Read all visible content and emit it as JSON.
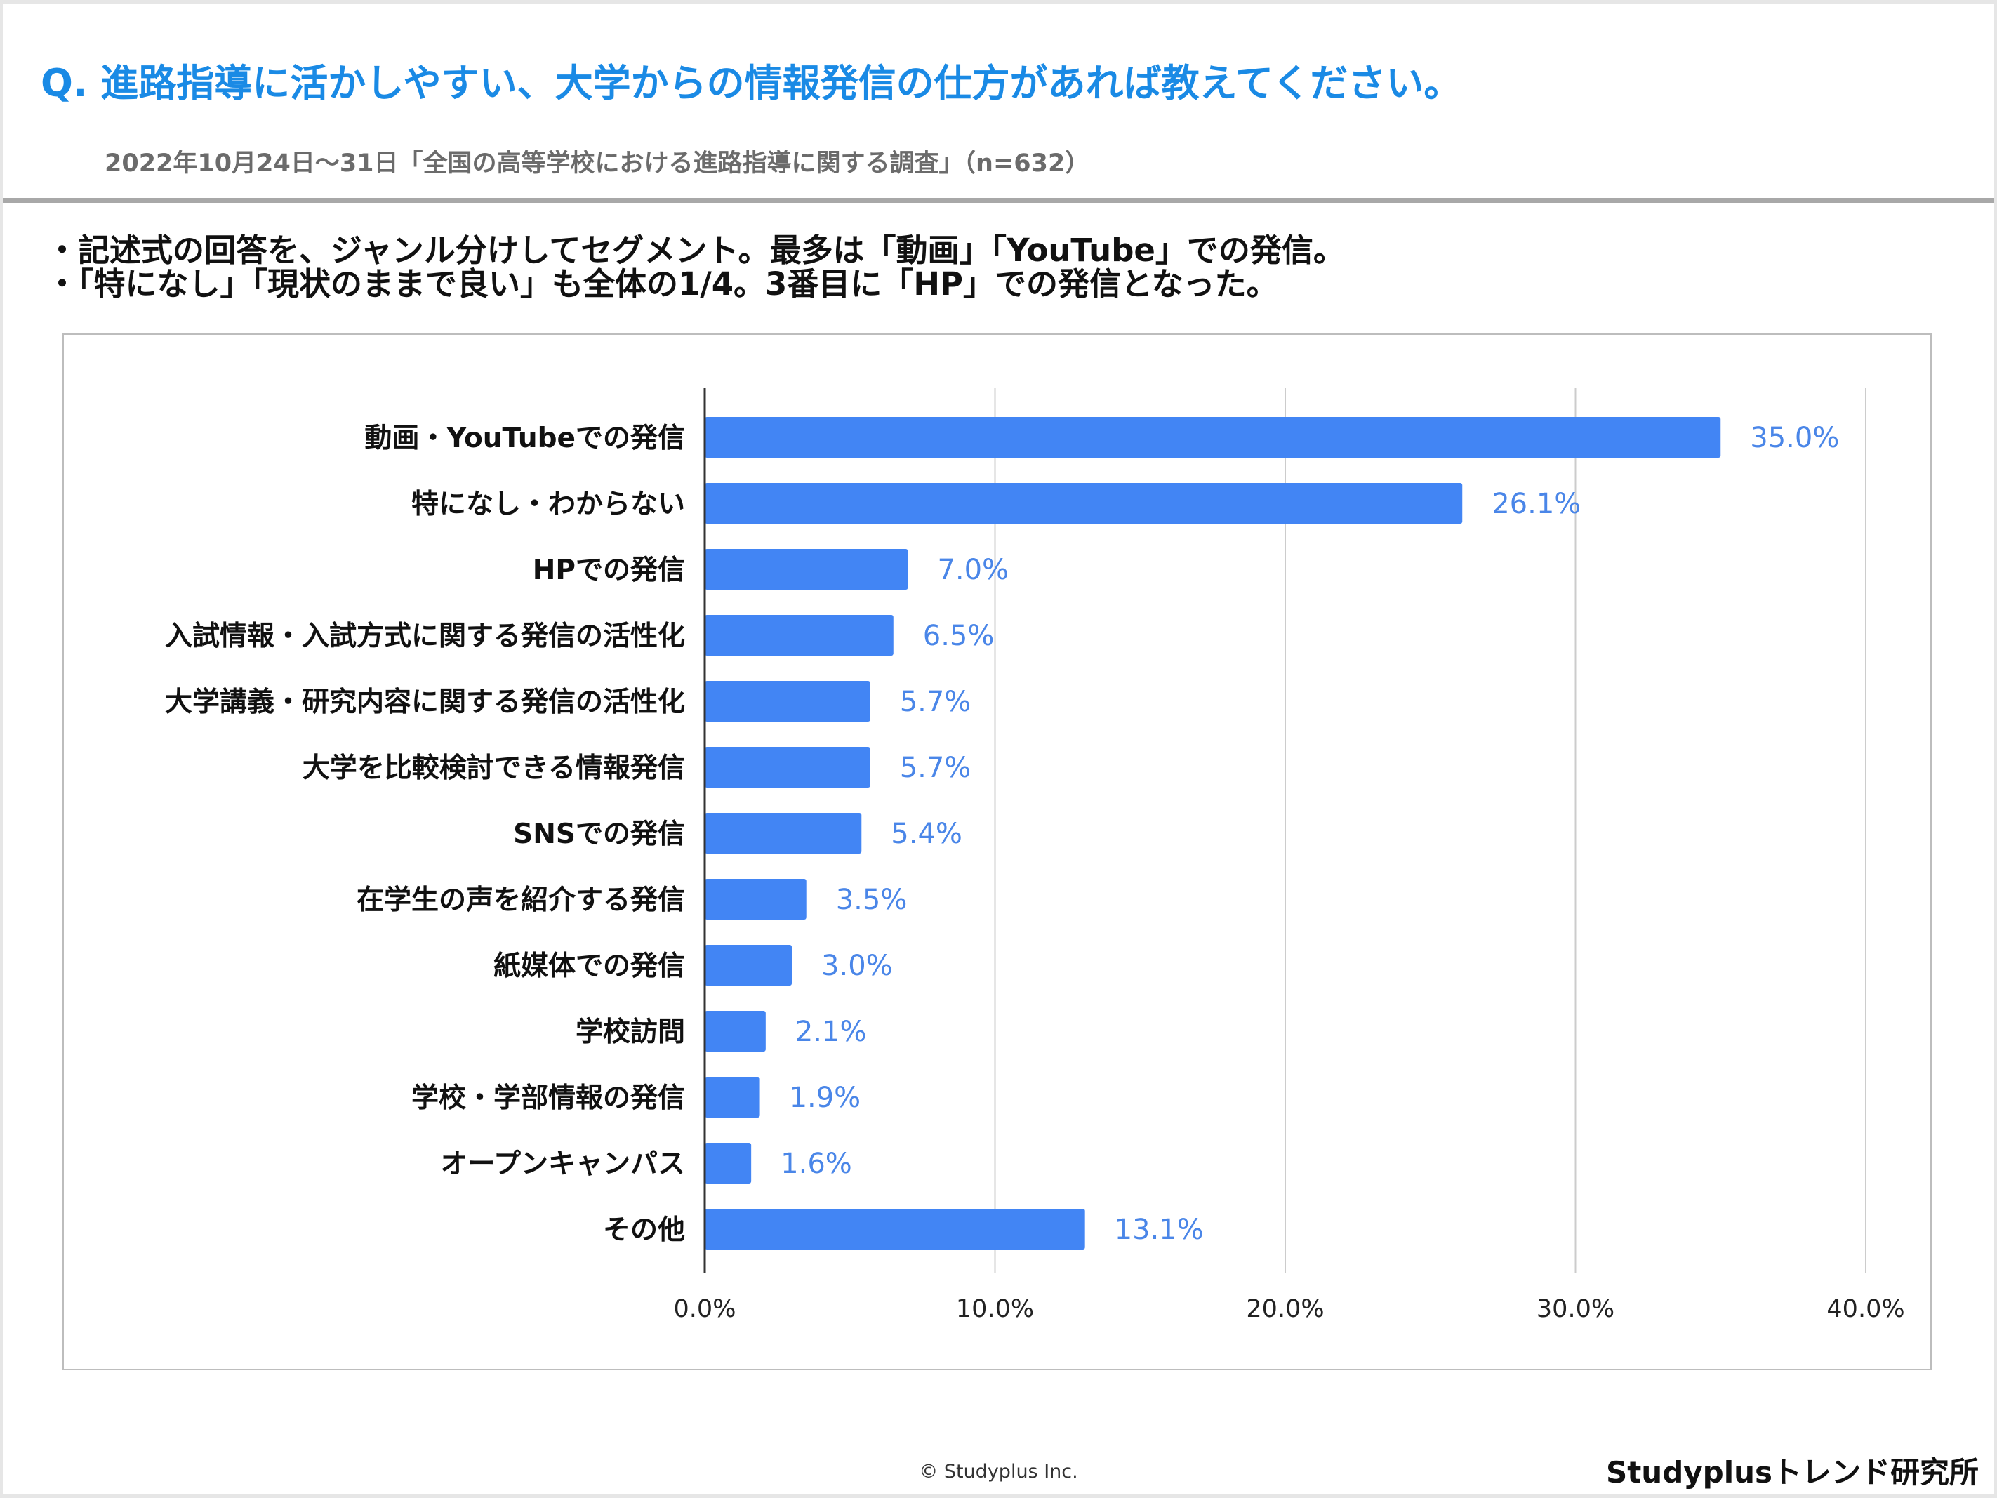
{
  "header": {
    "title": "Q. 進路指導に活かしやすい、大学からの情報発信の仕方があれば教えてください。",
    "subtitle": "2022年10月24日～31日「全国の高等学校における進路指導に関する調査」（n=632）"
  },
  "bullets": [
    "・記述式の回答を、ジャンル分けしてセグメント。最多は「動画」「YouTube」での発信。",
    "・「特になし」「現状のままで良い」も全体の1/4。3番目に「HP」での発信となった。"
  ],
  "chart_data": {
    "type": "bar",
    "orientation": "horizontal",
    "categories": [
      "動画・YouTubeでの発信",
      "特になし・わからない",
      "HPでの発信",
      "入試情報・入試方式に関する発信の活性化",
      "大学講義・研究内容に関する発信の活性化",
      "大学を比較検討できる情報発信",
      "SNSでの発信",
      "在学生の声を紹介する発信",
      "紙媒体での発信",
      "学校訪問",
      "学校・学部情報の発信",
      "オープンキャンパス",
      "その他"
    ],
    "values": [
      35.0,
      26.1,
      7.0,
      6.5,
      5.7,
      5.7,
      5.4,
      3.5,
      3.0,
      2.1,
      1.9,
      1.6,
      13.1
    ],
    "value_labels": [
      "35.0%",
      "26.1%",
      "7.0%",
      "6.5%",
      "5.7%",
      "5.7%",
      "5.4%",
      "3.5%",
      "3.0%",
      "2.1%",
      "1.9%",
      "1.6%",
      "13.1%"
    ],
    "xlim": [
      0,
      40
    ],
    "xticks": [
      0,
      10,
      20,
      30,
      40
    ],
    "xtick_labels": [
      "0.0%",
      "10.0%",
      "20.0%",
      "30.0%",
      "40.0%"
    ],
    "grid": true,
    "bar_color": "#4285f4",
    "label_color": "#4a86e8"
  },
  "footer": {
    "copyright": "© Studyplus Inc.",
    "brand": "Studyplusトレンド研究所"
  }
}
